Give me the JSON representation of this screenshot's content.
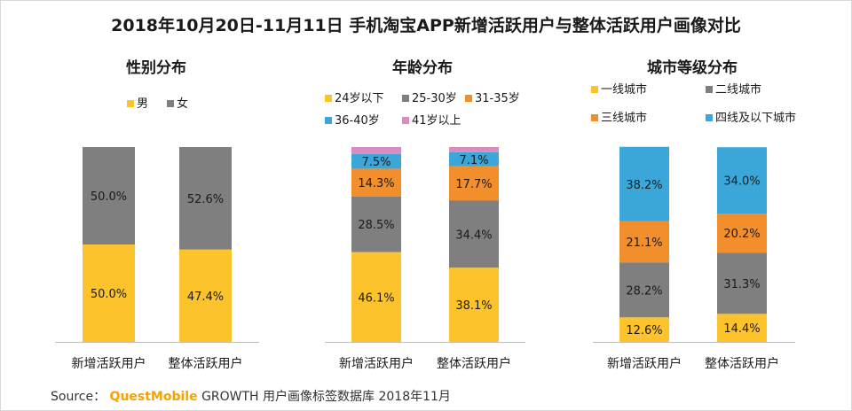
{
  "title": "2018年10月20日-11月11日 手机淘宝APP新增活跃用户与整体活跃用户画像对比",
  "source": {
    "prefix": "Source：",
    "brand": "QuestMobile",
    "text": "GROWTH 用户画像标签数据库 2018年11月"
  },
  "colors": {
    "yellow": "#fcc32c",
    "gray": "#7f7f7f",
    "orange": "#f28e2b",
    "blue": "#3aa7d8",
    "pink": "#d98cc0"
  },
  "chart_data": [
    {
      "type": "bar",
      "stacked": true,
      "title": "性别分布",
      "categories": [
        "新增活跃用户",
        "整体活跃用户"
      ],
      "ylim": [
        0,
        100
      ],
      "series": [
        {
          "name": "男",
          "color": "#fcc32c",
          "values": [
            50.0,
            47.4
          ],
          "labels": [
            "50.0%",
            "47.4%"
          ]
        },
        {
          "name": "女",
          "color": "#7f7f7f",
          "values": [
            50.0,
            52.6
          ],
          "labels": [
            "50.0%",
            "52.6%"
          ]
        }
      ]
    },
    {
      "type": "bar",
      "stacked": true,
      "title": "年龄分布",
      "categories": [
        "新增活跃用户",
        "整体活跃用户"
      ],
      "ylim": [
        0,
        100
      ],
      "series": [
        {
          "name": "24岁以下",
          "color": "#fcc32c",
          "values": [
            46.1,
            38.1
          ],
          "labels": [
            "46.1%",
            "38.1%"
          ]
        },
        {
          "name": "25-30岁",
          "color": "#7f7f7f",
          "values": [
            28.5,
            34.4
          ],
          "labels": [
            "28.5%",
            "34.4%"
          ]
        },
        {
          "name": "31-35岁",
          "color": "#f28e2b",
          "values": [
            14.3,
            17.7
          ],
          "labels": [
            "14.3%",
            "17.7%"
          ]
        },
        {
          "name": "36-40岁",
          "color": "#3aa7d8",
          "values": [
            7.5,
            7.1
          ],
          "labels": [
            "7.5%",
            "7.1%"
          ]
        },
        {
          "name": "41岁以上",
          "color": "#d98cc0",
          "values": [
            3.6,
            2.7
          ],
          "labels": [
            "",
            ""
          ]
        }
      ]
    },
    {
      "type": "bar",
      "stacked": true,
      "title": "城市等级分布",
      "categories": [
        "新增活跃用户",
        "整体活跃用户"
      ],
      "ylim": [
        0,
        100
      ],
      "series": [
        {
          "name": "一线城市",
          "color": "#fcc32c",
          "values": [
            12.6,
            14.4
          ],
          "labels": [
            "12.6%",
            "14.4%"
          ]
        },
        {
          "name": "二线城市",
          "color": "#7f7f7f",
          "values": [
            28.2,
            31.3
          ],
          "labels": [
            "28.2%",
            "31.3%"
          ]
        },
        {
          "name": "三线城市",
          "color": "#f28e2b",
          "values": [
            21.1,
            20.2
          ],
          "labels": [
            "21.1%",
            "20.2%"
          ]
        },
        {
          "name": "四线及以下城市",
          "color": "#3aa7d8",
          "values": [
            38.2,
            34.0
          ],
          "labels": [
            "38.2%",
            "34.0%"
          ]
        }
      ]
    }
  ]
}
